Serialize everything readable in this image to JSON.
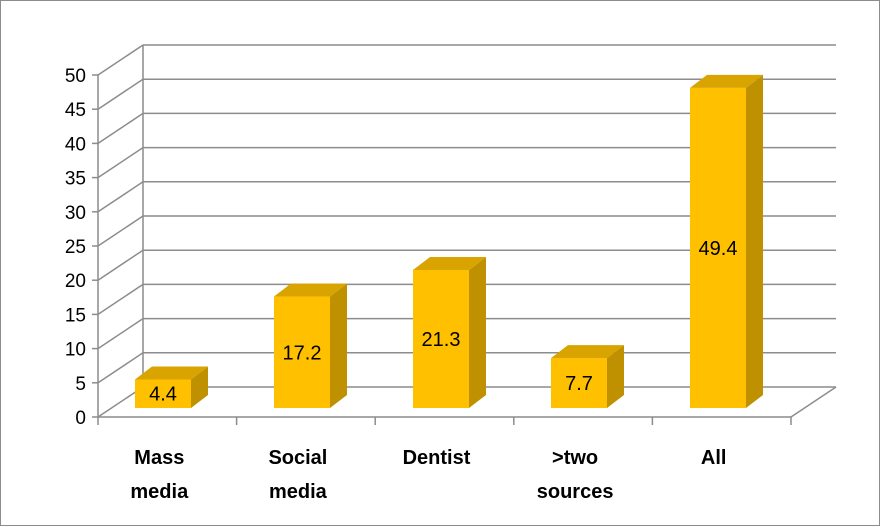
{
  "chart_data": {
    "type": "bar",
    "style": "3d-column",
    "categories": [
      [
        "Mass",
        "media"
      ],
      [
        "Social",
        "media"
      ],
      [
        "Dentist"
      ],
      [
        ">two",
        "sources"
      ],
      [
        "All"
      ]
    ],
    "values": [
      4.4,
      17.2,
      21.3,
      7.7,
      49.4
    ],
    "data_labels": [
      "4.4",
      "17.2",
      "21.3",
      "7.7",
      "49.4"
    ],
    "y_ticks": [
      "0",
      "5",
      "10",
      "15",
      "20",
      "25",
      "30",
      "35",
      "40",
      "45",
      "50"
    ],
    "ylim": [
      0,
      50
    ],
    "grid": true,
    "legend": "none",
    "title": "",
    "xlabel": "",
    "ylabel": "",
    "colors": {
      "bar_front": "#FFC000",
      "bar_side": "#BF9000",
      "bar_top": "#D9A300",
      "grid": "#8c8c8c",
      "axis": "#8c8c8c"
    }
  }
}
